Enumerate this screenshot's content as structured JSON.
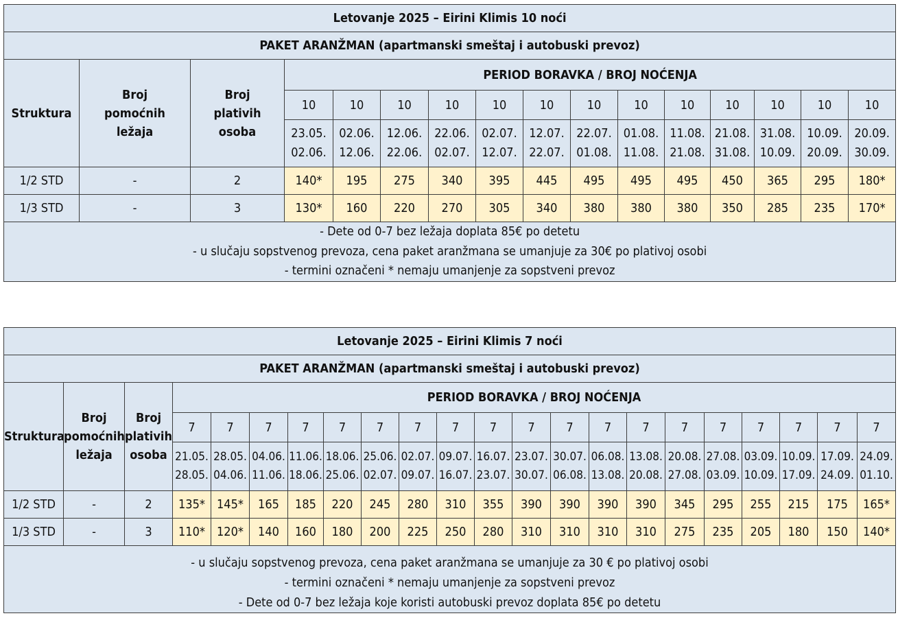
{
  "table_10": {
    "title": "Letovanje 2025 – Eirini Klimis 10 noći",
    "subtitle": "PAKET ARANŽMAN (apartmanski smeštaj i autobuski prevoz)",
    "col_struktura": "Struktura",
    "col_pomocni": "Broj pomoćnih ležaja",
    "col_plativ": "Broj plativih osoba",
    "period_header": "PERIOD BORAVKA / BROJ NOĆENJA",
    "nights": [
      "10",
      "10",
      "10",
      "10",
      "10",
      "10",
      "10",
      "10",
      "10",
      "10",
      "10",
      "10",
      "10"
    ],
    "dates_from": [
      "23.05.",
      "02.06.",
      "12.06.",
      "22.06.",
      "02.07.",
      "12.07.",
      "22.07.",
      "01.08.",
      "11.08.",
      "21.08.",
      "31.08.",
      "10.09.",
      "20.09."
    ],
    "dates_to": [
      "02.06.",
      "12.06.",
      "22.06.",
      "02.07.",
      "12.07.",
      "22.07.",
      "01.08.",
      "11.08.",
      "21.08.",
      "31.08.",
      "10.09.",
      "20.09.",
      "30.09."
    ],
    "rows": [
      {
        "struktura": "1/2 STD",
        "pomocni": "-",
        "plativ": "2",
        "prices": [
          "140*",
          "195",
          "275",
          "340",
          "395",
          "445",
          "495",
          "495",
          "495",
          "450",
          "365",
          "295",
          "180*"
        ]
      },
      {
        "struktura": "1/3 STD",
        "pomocni": "-",
        "plativ": "3",
        "prices": [
          "130*",
          "160",
          "220",
          "270",
          "305",
          "340",
          "380",
          "380",
          "380",
          "350",
          "285",
          "235",
          "170*"
        ]
      }
    ],
    "notes": [
      "- Dete od 0-7 bez ležaja doplata 85€ po detetu",
      "- u slučaju sopstvenog prevoza, cena paket aranžmana se umanjuje za 30€ po plativoj osobi",
      "- termini označeni * nemaju umanjenje za sopstveni prevoz"
    ]
  },
  "table_7": {
    "title": "Letovanje 2025 – Eirini Klimis 7 noći",
    "subtitle": "PAKET ARANŽMAN (apartmanski smeštaj i autobuski prevoz)",
    "col_struktura": "Struktura",
    "col_pomocni": "Broj pomoćnih ležaja",
    "col_plativ": "Broj plativih osoba",
    "period_header": "PERIOD BORAVKA / BROJ NOĆENJA",
    "nights": [
      "7",
      "7",
      "7",
      "7",
      "7",
      "7",
      "7",
      "7",
      "7",
      "7",
      "7",
      "7",
      "7",
      "7",
      "7",
      "7",
      "7",
      "7",
      "7"
    ],
    "dates_from": [
      "21.05.",
      "28.05.",
      "04.06.",
      "11.06.",
      "18.06.",
      "25.06.",
      "02.07.",
      "09.07.",
      "16.07.",
      "23.07.",
      "30.07.",
      "06.08.",
      "13.08.",
      "20.08.",
      "27.08.",
      "03.09.",
      "10.09.",
      "17.09.",
      "24.09."
    ],
    "dates_to": [
      "28.05.",
      "04.06.",
      "11.06.",
      "18.06.",
      "25.06.",
      "02.07.",
      "09.07.",
      "16.07.",
      "23.07.",
      "30.07.",
      "06.08.",
      "13.08.",
      "20.08.",
      "27.08.",
      "03.09.",
      "10.09.",
      "17.09.",
      "24.09.",
      "01.10."
    ],
    "rows": [
      {
        "struktura": "1/2 STD",
        "pomocni": "-",
        "plativ": "2",
        "prices": [
          "135*",
          "145*",
          "165",
          "185",
          "220",
          "245",
          "280",
          "310",
          "355",
          "390",
          "390",
          "390",
          "390",
          "345",
          "295",
          "255",
          "215",
          "175",
          "165*"
        ]
      },
      {
        "struktura": "1/3 STD",
        "pomocni": "-",
        "plativ": "3",
        "prices": [
          "110*",
          "120*",
          "140",
          "160",
          "180",
          "200",
          "225",
          "250",
          "280",
          "310",
          "310",
          "310",
          "310",
          "275",
          "235",
          "205",
          "180",
          "150",
          "140*"
        ]
      }
    ],
    "notes": [
      "- u slučaju sopstvenog prevoza, cena paket aranžmana se umanjuje za 30 € po plativoj osobi",
      "- termini označeni * nemaju umanjenje za sopstveni prevoz",
      "- Dete od 0-7 bez ležaja koje koristi autobuski prevoz doplata 85€ po detetu"
    ]
  }
}
